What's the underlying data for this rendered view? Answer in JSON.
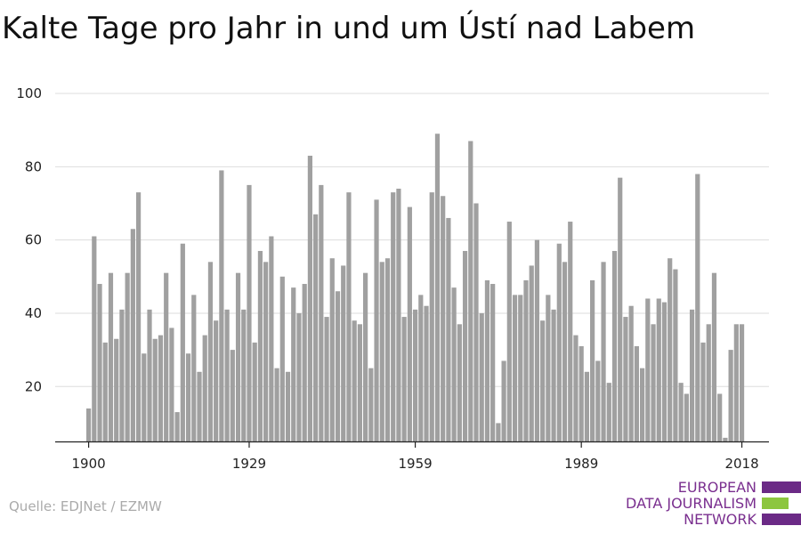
{
  "title": "Kalte Tage pro Jahr in und um Ústí nad Labem",
  "source": "Quelle: EDJNet / EZMW",
  "logo": {
    "lines": [
      "EUROPEAN",
      "DATA JOURNALISM",
      "NETWORK"
    ],
    "colors": {
      "text": "#7a2f8f",
      "bar_purple": "#6b2a86",
      "bar_green": "#8dc63f"
    }
  },
  "colors": {
    "bar": "#a0a0a0",
    "grid": "#dddddd",
    "axis": "#222222"
  },
  "chart_data": {
    "type": "bar",
    "x": [
      1900,
      1901,
      1902,
      1903,
      1904,
      1905,
      1906,
      1907,
      1908,
      1909,
      1910,
      1911,
      1912,
      1913,
      1914,
      1915,
      1916,
      1917,
      1918,
      1919,
      1920,
      1921,
      1922,
      1923,
      1924,
      1925,
      1926,
      1927,
      1928,
      1929,
      1930,
      1931,
      1932,
      1933,
      1934,
      1935,
      1936,
      1937,
      1938,
      1939,
      1940,
      1941,
      1942,
      1943,
      1944,
      1945,
      1946,
      1947,
      1948,
      1949,
      1950,
      1951,
      1952,
      1953,
      1954,
      1955,
      1956,
      1957,
      1958,
      1959,
      1960,
      1961,
      1962,
      1963,
      1964,
      1965,
      1966,
      1967,
      1968,
      1969,
      1970,
      1971,
      1972,
      1973,
      1974,
      1975,
      1976,
      1977,
      1978,
      1979,
      1980,
      1981,
      1982,
      1983,
      1984,
      1985,
      1986,
      1987,
      1988,
      1989,
      1990,
      1991,
      1992,
      1993,
      1994,
      1995,
      1996,
      1997,
      1998,
      1999,
      2000,
      2001,
      2002,
      2003,
      2004,
      2005,
      2006,
      2007,
      2008,
      2009,
      2010,
      2011,
      2012,
      2013,
      2014,
      2015,
      2016,
      2017,
      2018
    ],
    "values": [
      14,
      61,
      48,
      32,
      51,
      33,
      41,
      51,
      63,
      73,
      29,
      41,
      33,
      34,
      51,
      36,
      13,
      59,
      29,
      45,
      24,
      34,
      54,
      38,
      79,
      41,
      30,
      51,
      41,
      75,
      32,
      57,
      54,
      61,
      25,
      50,
      24,
      47,
      40,
      48,
      83,
      67,
      75,
      39,
      55,
      46,
      53,
      73,
      38,
      37,
      51,
      25,
      71,
      54,
      55,
      73,
      74,
      39,
      69,
      41,
      45,
      42,
      73,
      89,
      72,
      66,
      47,
      37,
      57,
      87,
      70,
      40,
      49,
      48,
      10,
      27,
      65,
      45,
      45,
      49,
      53,
      60,
      38,
      45,
      41,
      59,
      54,
      65,
      34,
      31,
      24,
      49,
      27,
      54,
      21,
      57,
      77,
      39,
      42,
      31,
      25,
      44,
      37,
      44,
      43,
      55,
      52,
      21,
      18,
      41,
      78,
      32,
      37,
      51,
      18,
      6,
      30,
      37,
      37
    ],
    "title": "Kalte Tage pro Jahr in und um Ústí nad Labem",
    "xlabel": "",
    "ylabel": "",
    "ylim": [
      5,
      100
    ],
    "y_ticks": [
      20,
      40,
      60,
      80,
      100
    ],
    "x_ticks": [
      1900,
      1929,
      1959,
      1989,
      2018
    ],
    "grid": true
  }
}
